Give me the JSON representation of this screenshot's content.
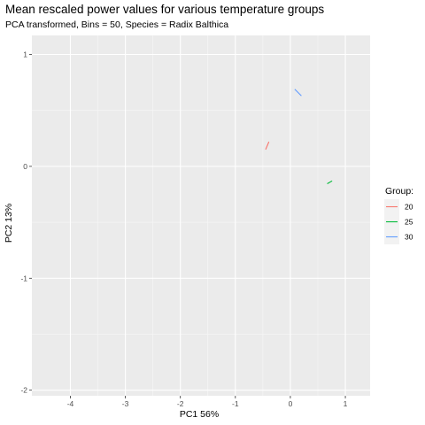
{
  "chart_data": {
    "type": "line",
    "title": "Mean rescaled power values for various temperature groups",
    "subtitle": "PCA transformed, Bins = 50, Species = Radix Balthica",
    "xlabel": "PC1 56%",
    "ylabel": "PC2 13%",
    "xlim": [
      -4.7,
      1.45
    ],
    "ylim": [
      -2.05,
      1.17
    ],
    "xticks": [
      -4,
      -3,
      -2,
      -1,
      0,
      1
    ],
    "xtick_labels": [
      "-4",
      "-3",
      "-2",
      "-1",
      "0",
      "1"
    ],
    "yticks": [
      -2,
      -1,
      0,
      1
    ],
    "ytick_labels": [
      "-2",
      "-1",
      "0",
      "1"
    ],
    "grid": true,
    "legend": {
      "title": "Group:",
      "placement": "right"
    },
    "series": [
      {
        "name": "20",
        "color": "#F8766D",
        "x": [
          -0.45,
          -0.39
        ],
        "y": [
          0.15,
          0.22
        ]
      },
      {
        "name": "25",
        "color": "#00BA38",
        "x": [
          0.67,
          0.76
        ],
        "y": [
          -0.155,
          -0.13
        ]
      },
      {
        "name": "30",
        "color": "#619CFF",
        "x": [
          0.08,
          0.2
        ],
        "y": [
          0.69,
          0.63
        ]
      }
    ]
  }
}
